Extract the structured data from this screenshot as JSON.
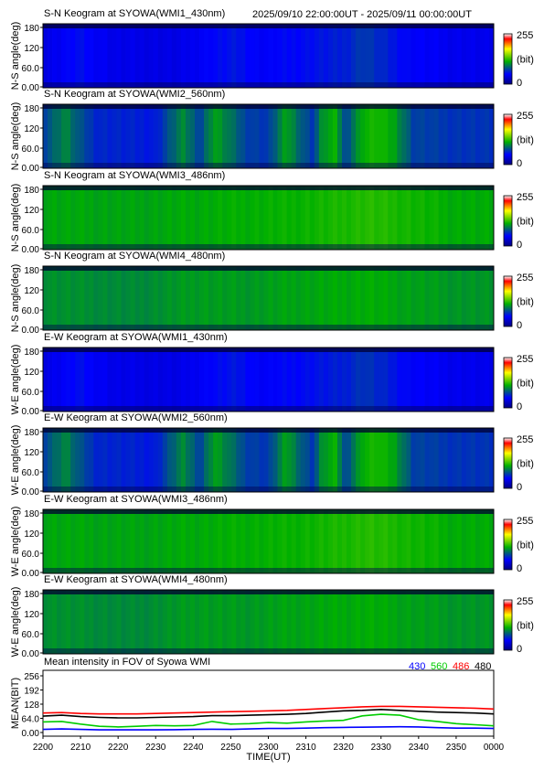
{
  "header": {
    "time_range": "2025/09/10 22:00:00UT - 2025/09/11 00:00:00UT"
  },
  "colorbar": {
    "max_label": "255",
    "unit_label": "(bit)",
    "min_label": "0"
  },
  "chart_data": [
    {
      "type": "heatmap",
      "title": "S-N Keogram at SYOWA(WMI1_430nm)",
      "ylabel": "N-S angle(deg)",
      "yticks": [
        "180",
        "120",
        "60.0",
        "0.00"
      ],
      "ylim": [
        0,
        180
      ],
      "xlim": [
        "2200",
        "0000"
      ],
      "colorscale": [
        "#000080",
        "#0000ff",
        "#00b000",
        "#ffff00",
        "#ff0000",
        "#ffffff"
      ],
      "value_range": [
        0,
        255
      ],
      "profile": {
        "x": [
          0,
          8,
          16,
          30,
          36,
          43,
          49,
          53,
          58,
          62,
          67,
          71,
          77,
          82,
          90,
          100
        ],
        "values": [
          40,
          55,
          42,
          40,
          50,
          58,
          48,
          52,
          55,
          58,
          62,
          72,
          60,
          50,
          45,
          42
        ]
      }
    },
    {
      "type": "heatmap",
      "title": "S-N Keogram at SYOWA(WMI2_560nm)",
      "ylabel": "N-S angle(deg)",
      "yticks": [
        "180",
        "120",
        "60.0",
        "0.00"
      ],
      "ylim": [
        0,
        180
      ],
      "xlim": [
        "2200",
        "0000"
      ],
      "colorscale": [
        "#000080",
        "#0000ff",
        "#00b000",
        "#ffff00",
        "#ff0000",
        "#ffffff"
      ],
      "value_range": [
        0,
        255
      ],
      "profile": {
        "x": [
          0,
          5,
          8,
          12,
          25,
          31,
          35,
          38,
          45,
          50,
          54,
          58,
          60,
          62,
          65,
          67,
          71,
          74,
          78,
          82,
          90,
          100
        ],
        "values": [
          75,
          100,
          80,
          65,
          60,
          100,
          75,
          110,
          75,
          70,
          110,
          80,
          70,
          105,
          115,
          75,
          115,
          120,
          110,
          75,
          70,
          68
        ]
      }
    },
    {
      "type": "heatmap",
      "title": "S-N Keogram at SYOWA(WMI3_486nm)",
      "ylabel": "N-S angle(deg)",
      "yticks": [
        "180",
        "120",
        "60.0",
        "0.00"
      ],
      "ylim": [
        0,
        180
      ],
      "xlim": [
        "2200",
        "0000"
      ],
      "colorscale": [
        "#000080",
        "#0000ff",
        "#00b000",
        "#ffff00",
        "#ff0000",
        "#ffffff"
      ],
      "value_range": [
        0,
        255
      ],
      "profile": {
        "x": [
          0,
          20,
          40,
          55,
          65,
          72,
          80,
          90,
          100
        ],
        "values": [
          112,
          110,
          114,
          116,
          120,
          124,
          120,
          114,
          112
        ]
      }
    },
    {
      "type": "heatmap",
      "title": "S-N Keogram at SYOWA(WMI4_480nm)",
      "ylabel": "N-S angle(deg)",
      "yticks": [
        "180",
        "120",
        "60.0",
        "0.00"
      ],
      "ylim": [
        0,
        180
      ],
      "xlim": [
        "2200",
        "0000"
      ],
      "colorscale": [
        "#000080",
        "#0000ff",
        "#00b000",
        "#ffff00",
        "#ff0000",
        "#ffffff"
      ],
      "value_range": [
        0,
        255
      ],
      "profile": {
        "x": [
          0,
          20,
          35,
          45,
          55,
          65,
          72,
          80,
          90,
          100
        ],
        "values": [
          104,
          100,
          108,
          106,
          110,
          112,
          114,
          110,
          106,
          104
        ]
      }
    },
    {
      "type": "heatmap",
      "title": "E-W Keogram at SYOWA(WMI1_430nm)",
      "ylabel": "W-E angle(deg)",
      "yticks": [
        "180",
        "120",
        "60.0",
        "0.00"
      ],
      "ylim": [
        0,
        180
      ],
      "xlim": [
        "2200",
        "0000"
      ],
      "colorscale": [
        "#000080",
        "#0000ff",
        "#00b000",
        "#ffff00",
        "#ff0000",
        "#ffffff"
      ],
      "value_range": [
        0,
        255
      ],
      "profile": {
        "x": [
          0,
          8,
          16,
          30,
          36,
          43,
          49,
          53,
          58,
          62,
          67,
          71,
          77,
          82,
          90,
          100
        ],
        "values": [
          40,
          55,
          42,
          40,
          50,
          58,
          48,
          52,
          55,
          58,
          62,
          70,
          60,
          50,
          45,
          42
        ]
      }
    },
    {
      "type": "heatmap",
      "title": "E-W Keogram at SYOWA(WMI2_560nm)",
      "ylabel": "W-E angle(deg)",
      "yticks": [
        "180",
        "120",
        "60.0",
        "0.00"
      ],
      "ylim": [
        0,
        180
      ],
      "xlim": [
        "2200",
        "0000"
      ],
      "colorscale": [
        "#000080",
        "#0000ff",
        "#00b000",
        "#ffff00",
        "#ff0000",
        "#ffffff"
      ],
      "value_range": [
        0,
        255
      ],
      "profile": {
        "x": [
          0,
          5,
          8,
          12,
          25,
          31,
          35,
          38,
          45,
          50,
          54,
          58,
          60,
          62,
          65,
          67,
          71,
          74,
          78,
          82,
          90,
          100
        ],
        "values": [
          75,
          100,
          80,
          65,
          60,
          100,
          75,
          110,
          75,
          70,
          110,
          80,
          70,
          105,
          115,
          75,
          115,
          120,
          110,
          75,
          70,
          68
        ]
      }
    },
    {
      "type": "heatmap",
      "title": "E-W Keogram at SYOWA(WMI3_486nm)",
      "ylabel": "W-E angle(deg)",
      "yticks": [
        "180",
        "120",
        "60.0",
        "0.00"
      ],
      "ylim": [
        0,
        180
      ],
      "xlim": [
        "2200",
        "0000"
      ],
      "colorscale": [
        "#000080",
        "#0000ff",
        "#00b000",
        "#ffff00",
        "#ff0000",
        "#ffffff"
      ],
      "value_range": [
        0,
        255
      ],
      "profile": {
        "x": [
          0,
          20,
          40,
          55,
          65,
          72,
          80,
          90,
          100
        ],
        "values": [
          112,
          110,
          114,
          116,
          120,
          124,
          120,
          114,
          112
        ]
      }
    },
    {
      "type": "heatmap",
      "title": "E-W Keogram at SYOWA(WMI4_480nm)",
      "ylabel": "W-E angle(deg)",
      "yticks": [
        "180",
        "120",
        "60.0",
        "0.00"
      ],
      "ylim": [
        0,
        180
      ],
      "xlim": [
        "2200",
        "0000"
      ],
      "colorscale": [
        "#000080",
        "#0000ff",
        "#00b000",
        "#ffff00",
        "#ff0000",
        "#ffffff"
      ],
      "value_range": [
        0,
        255
      ],
      "profile": {
        "x": [
          0,
          20,
          35,
          45,
          55,
          65,
          72,
          80,
          90,
          100
        ],
        "values": [
          104,
          100,
          108,
          106,
          110,
          112,
          114,
          110,
          106,
          104
        ]
      }
    },
    {
      "type": "line",
      "title": "Mean intensity in FOV of Syowa WMI",
      "xlabel": "TIME(UT)",
      "ylabel": "MEAN(BIT)",
      "xticks": [
        "2200",
        "2210",
        "2220",
        "2230",
        "2240",
        "2250",
        "2300",
        "2310",
        "2320",
        "2330",
        "2340",
        "2350",
        "0000"
      ],
      "yticks": [
        "256",
        "192",
        "128",
        "64.0",
        "0.00"
      ],
      "ylim": [
        0,
        256
      ],
      "x": [
        0,
        5,
        10,
        15,
        20,
        25,
        30,
        35,
        40,
        45,
        50,
        55,
        60,
        65,
        70,
        75,
        80,
        85,
        90,
        95,
        100,
        105,
        110,
        115,
        120
      ],
      "series": [
        {
          "name": "430",
          "color": "#0000ff",
          "values": [
            14,
            16,
            14,
            12,
            12,
            12,
            12,
            13,
            14,
            15,
            14,
            16,
            18,
            18,
            20,
            22,
            23,
            24,
            25,
            26,
            25,
            22,
            20,
            20,
            18
          ]
        },
        {
          "name": "560",
          "color": "#00cc00",
          "values": [
            48,
            50,
            38,
            28,
            25,
            28,
            32,
            30,
            32,
            50,
            38,
            40,
            45,
            42,
            48,
            52,
            55,
            75,
            82,
            78,
            58,
            50,
            40,
            35,
            30
          ]
        },
        {
          "name": "486",
          "color": "#ff0000",
          "values": [
            88,
            90,
            86,
            84,
            84,
            84,
            86,
            88,
            90,
            92,
            94,
            96,
            98,
            100,
            104,
            108,
            112,
            116,
            118,
            118,
            116,
            114,
            112,
            110,
            106
          ]
        },
        {
          "name": "480",
          "color": "#000000",
          "values": [
            74,
            78,
            72,
            68,
            66,
            66,
            68,
            70,
            72,
            76,
            76,
            78,
            80,
            82,
            86,
            92,
            98,
            100,
            104,
            100,
            96,
            92,
            90,
            88,
            84
          ]
        }
      ]
    }
  ]
}
